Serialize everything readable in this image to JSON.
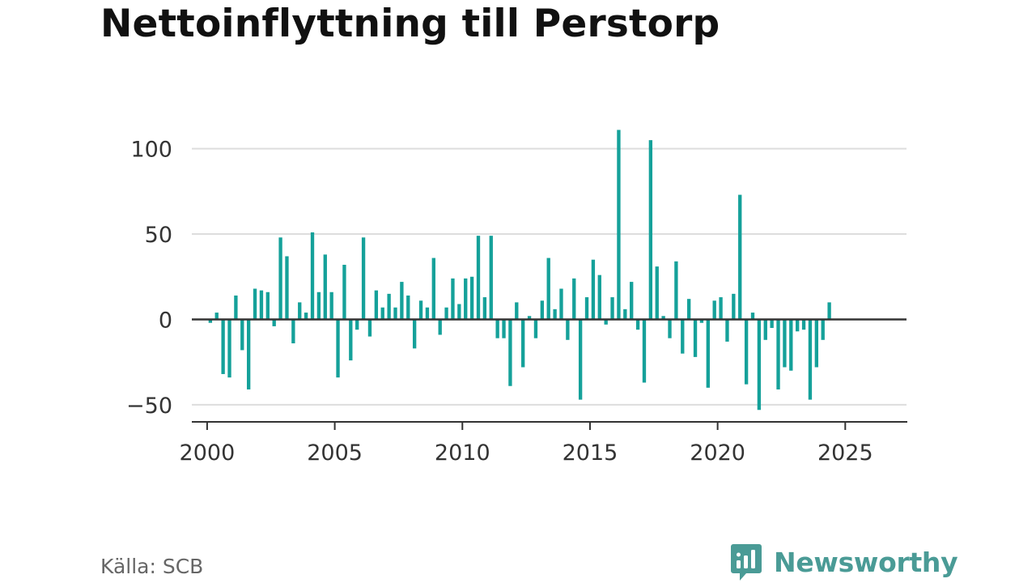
{
  "title": "Nettoinflyttning till Perstorp",
  "source": "Källa: SCB",
  "brand": {
    "name": "Newsworthy",
    "icon": "bar-chart-speech-bubble-icon",
    "color": "#4a9b96"
  },
  "chart_data": {
    "type": "bar",
    "title": "Nettoinflyttning till Perstorp",
    "xlabel": "",
    "ylabel": "",
    "xlim": [
      1999.4,
      2027.4
    ],
    "ylim": [
      -60,
      115
    ],
    "yticks": [
      100,
      50,
      0,
      -50
    ],
    "ytick_labels": [
      "100",
      "50",
      "0",
      "−50"
    ],
    "xticks": [
      2000,
      2005,
      2010,
      2015,
      2020,
      2025
    ],
    "xtick_labels": [
      "2000",
      "2005",
      "2010",
      "2015",
      "2020",
      "2025"
    ],
    "grid": true,
    "bar_color": "#15a19a",
    "frequency": "quarterly",
    "x_start": 2000.125,
    "x_step": 0.25,
    "values": [
      -2,
      4,
      -32,
      -34,
      14,
      -18,
      -41,
      18,
      17,
      16,
      -4,
      48,
      37,
      -14,
      10,
      4,
      51,
      16,
      38,
      16,
      -34,
      32,
      -24,
      -6,
      48,
      -10,
      17,
      7,
      15,
      7,
      22,
      14,
      -17,
      11,
      7,
      36,
      -9,
      7,
      24,
      9,
      24,
      25,
      49,
      13,
      49,
      -11,
      -11,
      -39,
      10,
      -28,
      2,
      -11,
      11,
      36,
      6,
      18,
      -12,
      24,
      -47,
      13,
      35,
      26,
      -3,
      13,
      111,
      6,
      22,
      -6,
      -37,
      105,
      31,
      2,
      -11,
      34,
      -20,
      12,
      -22,
      -2,
      -40,
      11,
      13,
      -13,
      15,
      73,
      -38,
      4,
      -53,
      -12,
      -5,
      -41,
      -28,
      -30,
      -7,
      -6,
      -47,
      -28,
      -12,
      10
    ]
  }
}
